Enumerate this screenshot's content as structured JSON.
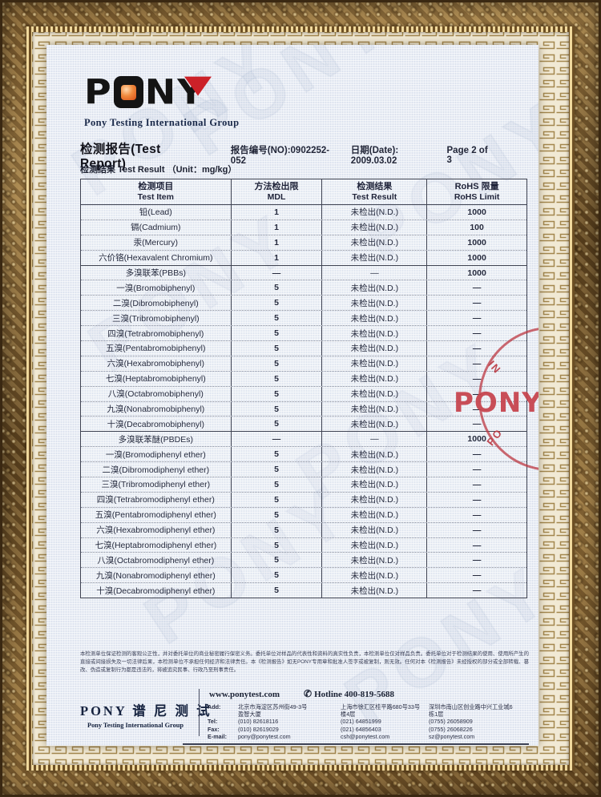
{
  "colors": {
    "accent_red": "#cc2128",
    "logo_black": "#141414",
    "navy": "#1b2a4a",
    "stamp_red": "#bb3a43",
    "paper": "#e9edf5",
    "frame_gold": "#8a6a3a",
    "mat_cream": "#f1e9d4"
  },
  "report": {
    "brand_p": "P",
    "brand_n": "N",
    "brand_y": "Y",
    "brand_subtitle": "Pony Testing International Group",
    "title": "检测报告(Test Report)",
    "report_no": "报告编号(NO):0902252-052",
    "date": "日期(Date): 2009.03.02",
    "page": "Page 2 of 3",
    "result_heading": "检测结果 Test Result （Unit：mg/kg）",
    "watermark": "PONY"
  },
  "table": {
    "headers": [
      {
        "cn": "检测项目",
        "en": "Test Item"
      },
      {
        "cn": "方法检出限",
        "en": "MDL"
      },
      {
        "cn": "检测结果",
        "en": "Test Result"
      },
      {
        "cn": "RoHS 限量",
        "en": "RoHS Limit"
      }
    ],
    "rows": [
      {
        "item": "铅(Lead)",
        "mdl": "1",
        "result": "未检出(N.D.)",
        "limit": "1000",
        "section": false
      },
      {
        "item": "镉(Cadmium)",
        "mdl": "1",
        "result": "未检出(N.D.)",
        "limit": "100",
        "section": false
      },
      {
        "item": "汞(Mercury)",
        "mdl": "1",
        "result": "未检出(N.D.)",
        "limit": "1000",
        "section": false
      },
      {
        "item": "六价铬(Hexavalent Chromium)",
        "mdl": "1",
        "result": "未检出(N.D.)",
        "limit": "1000",
        "section": false
      },
      {
        "item": "多溴联苯(PBBs)",
        "mdl": "—",
        "result": "—",
        "limit": "1000",
        "section": true
      },
      {
        "item": "一溴(Bromobiphenyl)",
        "mdl": "5",
        "result": "未检出(N.D.)",
        "limit": "—",
        "section": false
      },
      {
        "item": "二溴(Dibromobiphenyl)",
        "mdl": "5",
        "result": "未检出(N.D.)",
        "limit": "—",
        "section": false
      },
      {
        "item": "三溴(Tribromobiphenyl)",
        "mdl": "5",
        "result": "未检出(N.D.)",
        "limit": "—",
        "section": false
      },
      {
        "item": "四溴(Tetrabromobiphenyl)",
        "mdl": "5",
        "result": "未检出(N.D.)",
        "limit": "—",
        "section": false
      },
      {
        "item": "五溴(Pentabromobiphenyl)",
        "mdl": "5",
        "result": "未检出(N.D.)",
        "limit": "—",
        "section": false
      },
      {
        "item": "六溴(Hexabromobiphenyl)",
        "mdl": "5",
        "result": "未检出(N.D.)",
        "limit": "—",
        "section": false
      },
      {
        "item": "七溴(Heptabromobiphenyl)",
        "mdl": "5",
        "result": "未检出(N.D.)",
        "limit": "—",
        "section": false
      },
      {
        "item": "八溴(Octabromobiphenyl)",
        "mdl": "5",
        "result": "未检出(N.D.)",
        "limit": "—",
        "section": false
      },
      {
        "item": "九溴(Nonabromobiphenyl)",
        "mdl": "5",
        "result": "未检出(N.D.)",
        "limit": "—",
        "section": false
      },
      {
        "item": "十溴(Decabromobiphenyl)",
        "mdl": "5",
        "result": "未检出(N.D.)",
        "limit": "—",
        "section": false
      },
      {
        "item": "多溴联苯醚(PBDEs)",
        "mdl": "—",
        "result": "—",
        "limit": "1000",
        "section": true
      },
      {
        "item": "一溴(Bromodiphenyl ether)",
        "mdl": "5",
        "result": "未检出(N.D.)",
        "limit": "—",
        "section": false
      },
      {
        "item": "二溴(Dibromodiphenyl ether)",
        "mdl": "5",
        "result": "未检出(N.D.)",
        "limit": "—",
        "section": false
      },
      {
        "item": "三溴(Tribromodiphenyl ether)",
        "mdl": "5",
        "result": "未检出(N.D.)",
        "limit": "—",
        "section": false
      },
      {
        "item": "四溴(Tetrabromodiphenyl ether)",
        "mdl": "5",
        "result": "未检出(N.D.)",
        "limit": "—",
        "section": false
      },
      {
        "item": "五溴(Pentabromodiphenyl ether)",
        "mdl": "5",
        "result": "未检出(N.D.)",
        "limit": "—",
        "section": false
      },
      {
        "item": "六溴(Hexabromodiphenyl ether)",
        "mdl": "5",
        "result": "未检出(N.D.)",
        "limit": "—",
        "section": false
      },
      {
        "item": "七溴(Heptabromodiphenyl ether)",
        "mdl": "5",
        "result": "未检出(N.D.)",
        "limit": "—",
        "section": false
      },
      {
        "item": "八溴(Octabromodiphenyl ether)",
        "mdl": "5",
        "result": "未检出(N.D.)",
        "limit": "—",
        "section": false
      },
      {
        "item": "九溴(Nonabromodiphenyl ether)",
        "mdl": "5",
        "result": "未检出(N.D.)",
        "limit": "—",
        "section": false
      },
      {
        "item": "十溴(Decabromodiphenyl ether)",
        "mdl": "5",
        "result": "未检出(N.D.)",
        "limit": "—",
        "section": false
      }
    ]
  },
  "disclaimer": "本检测单位保证检测的客观公正性，并对委托单位的商业秘密履行保密义务。委托单位对样品的代表性和资料的真实性负责，本检测单位仅对样品负责。委托单位对于检测结果的使用、使用所产生的直接或间接损失及一切法律后果，本检测单位不承担任何经济和法律责任。本《检测报告》如无PONY专用章和批准人签字或被复制，则无效。任何对本《检测报告》未经授权的部分或全部转载、篡改、伪造或复制行为都是违法的，将被追究民事、行政乃至刑事责任。",
  "stamp": {
    "arc_top": "IN",
    "center": "PONY",
    "arc_bottom": "PO"
  },
  "footer": {
    "brand_cn": "PONY 谱 尼 测 试",
    "brand_en": "Pony Testing International Group",
    "website": "www.ponytest.com",
    "phone_icon": "✆",
    "hotline": "Hotline 400-819-5688",
    "labels": {
      "add": "Add:",
      "tel": "Tel:",
      "fax": "Fax:",
      "email": "E-mail:"
    },
    "offices": [
      {
        "add1": "北京市海淀区苏州街49-3号",
        "add2": "盈智大厦",
        "tel": "(010) 82618116",
        "fax": "(010) 82619029",
        "email": "pony@ponytest.com"
      },
      {
        "add1": "上海市徐汇区桂平路680号33号",
        "add2": "楼4层",
        "tel": "(021) 64851999",
        "fax": "(021) 64856403",
        "email": "csh@ponytest.com"
      },
      {
        "add1": "深圳市南山区创业路中兴工业城6",
        "add2": "栋1层",
        "tel": "(0755) 26058909",
        "fax": "(0755) 26068226",
        "email": "sz@ponytest.com"
      }
    ]
  }
}
